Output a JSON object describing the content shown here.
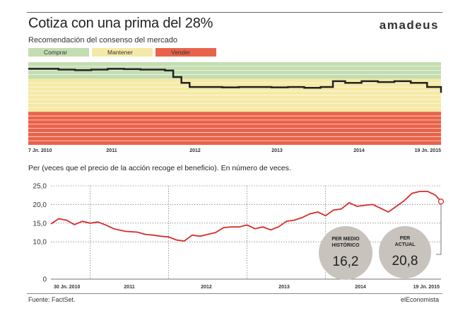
{
  "header": {
    "title": "Cotiza con una prima del 28%",
    "brand": "amadeus",
    "subtitle": "Recomendación del consenso del mercado"
  },
  "legend": [
    {
      "label": "Comprar",
      "color": "#c3ddb0"
    },
    {
      "label": "Mantener",
      "color": "#f5e9a6"
    },
    {
      "label": "Vender",
      "color": "#e8634a"
    }
  ],
  "colors": {
    "line1": "#222222",
    "line2": "#d92b2b",
    "circle": "#c8c3bc"
  },
  "chart_data": [
    {
      "type": "line",
      "title": "Recomendación del consenso del mercado",
      "xlabels": [
        "7 Jn. 2010",
        "2011",
        "2012",
        "2013",
        "2014",
        "19 Jn. 2015"
      ],
      "x": [
        2010.43,
        2010.6,
        2010.8,
        2011.0,
        2011.2,
        2011.4,
        2011.6,
        2011.8,
        2012.0,
        2012.1,
        2012.2,
        2012.3,
        2012.4,
        2012.6,
        2012.8,
        2013.0,
        2013.2,
        2013.4,
        2013.6,
        2013.8,
        2014.0,
        2014.15,
        2014.3,
        2014.5,
        2014.7,
        2014.9,
        2015.1,
        2015.3,
        2015.47
      ],
      "values": [
        4.6,
        4.6,
        4.55,
        4.52,
        4.55,
        4.6,
        4.58,
        4.55,
        4.55,
        4.5,
        4.1,
        3.75,
        3.5,
        3.5,
        3.48,
        3.5,
        3.5,
        3.48,
        3.5,
        3.45,
        3.5,
        3.85,
        3.75,
        3.85,
        3.8,
        3.85,
        3.75,
        3.5,
        3.15
      ],
      "bands": [
        {
          "label": "Comprar",
          "from": 4.0,
          "to": 5.0
        },
        {
          "label": "Mantener",
          "from": 2.0,
          "to": 4.0
        },
        {
          "label": "Vender",
          "from": 0.0,
          "to": 2.0
        }
      ],
      "xlim": [
        2010.43,
        2015.47
      ],
      "ylim": [
        0,
        5
      ]
    },
    {
      "type": "line",
      "title": "Per (veces que el precio de la acción recoge el beneficio). En número de veces.",
      "xlabels": [
        "30 Jn. 2010",
        "2011",
        "2012",
        "2013",
        "2014",
        "19 Jn. 2015"
      ],
      "yticks": [
        "25,0",
        "20,0",
        "15,0",
        "10,0",
        "0"
      ],
      "x": [
        2010.5,
        2010.6,
        2010.7,
        2010.8,
        2010.9,
        2011.0,
        2011.1,
        2011.2,
        2011.3,
        2011.45,
        2011.6,
        2011.7,
        2011.8,
        2011.9,
        2012.0,
        2012.1,
        2012.2,
        2012.3,
        2012.4,
        2012.5,
        2012.6,
        2012.7,
        2012.8,
        2012.9,
        2013.0,
        2013.1,
        2013.2,
        2013.3,
        2013.4,
        2013.5,
        2013.6,
        2013.7,
        2013.8,
        2013.9,
        2014.0,
        2014.1,
        2014.2,
        2014.3,
        2014.4,
        2014.5,
        2014.6,
        2014.7,
        2014.8,
        2014.9,
        2015.0,
        2015.1,
        2015.2,
        2015.3,
        2015.4,
        2015.47
      ],
      "values": [
        14.8,
        16.2,
        15.8,
        14.6,
        15.5,
        15.0,
        15.3,
        14.5,
        13.5,
        12.8,
        12.6,
        12.0,
        11.8,
        11.5,
        11.3,
        10.5,
        10.2,
        11.8,
        11.5,
        12.0,
        12.5,
        13.8,
        14.0,
        14.0,
        14.5,
        13.5,
        14.0,
        13.2,
        14.0,
        15.5,
        15.8,
        16.5,
        17.5,
        18.0,
        17.0,
        18.5,
        18.8,
        20.5,
        19.5,
        19.8,
        20.0,
        19.0,
        18.0,
        19.5,
        21.0,
        23.0,
        23.5,
        23.5,
        22.5,
        20.8
      ],
      "ylim": [
        0,
        25
      ],
      "annotations": [
        {
          "label": "PER MEDIO HISTÓRICO",
          "value": "16,2"
        },
        {
          "label": "PER ACTUAL",
          "value": "20,8"
        }
      ]
    }
  ],
  "footer": {
    "source": "Fuente: FactSet.",
    "credit": "elEconomista"
  }
}
